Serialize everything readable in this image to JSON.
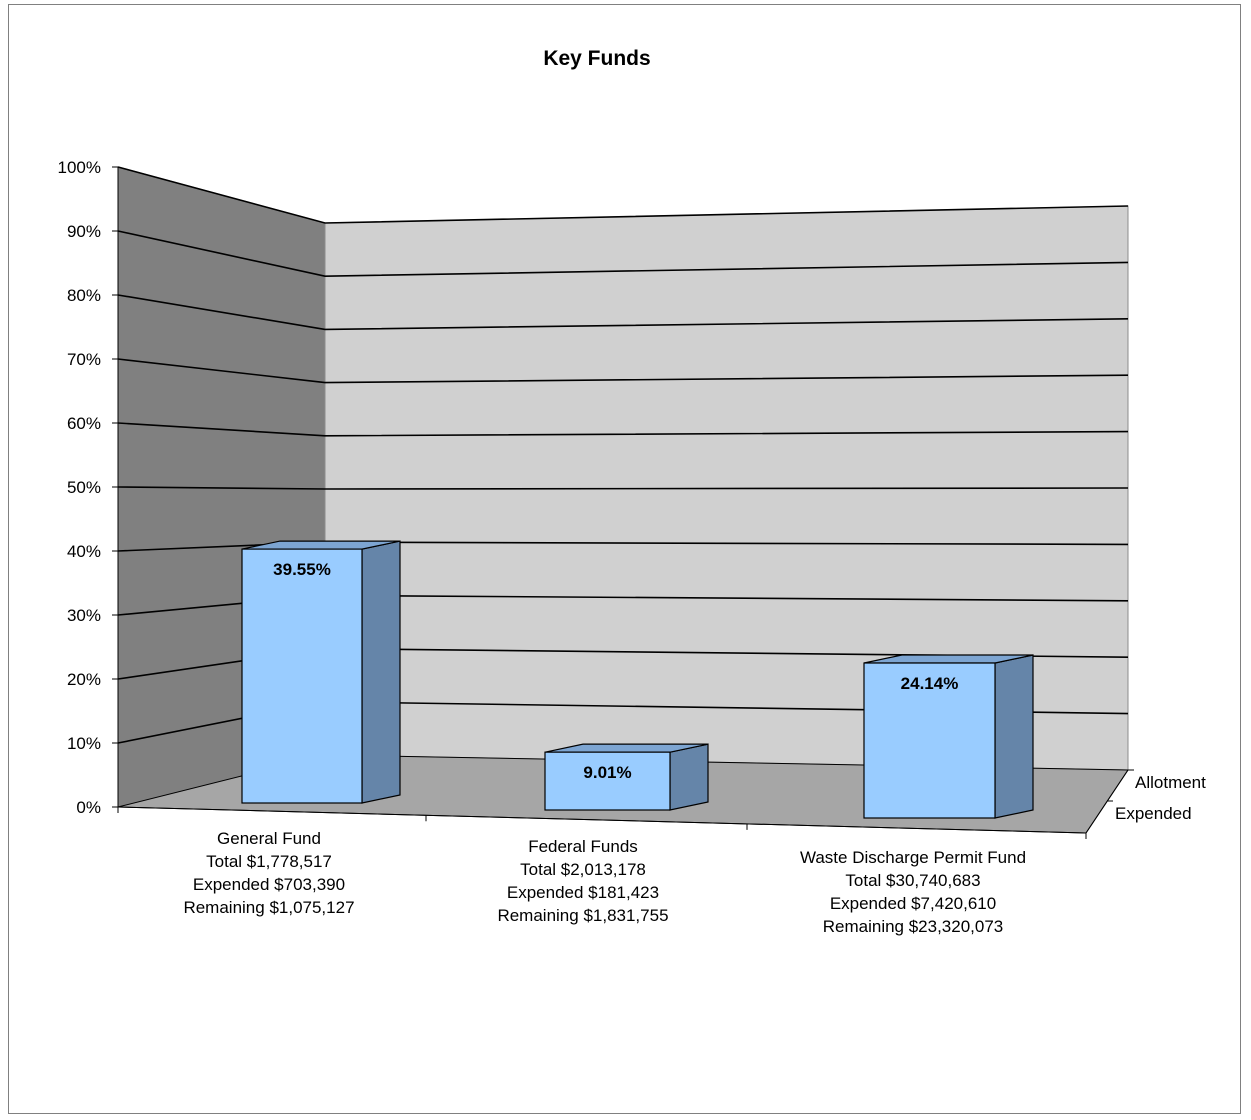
{
  "chart_data": {
    "type": "bar",
    "title": "Key Funds",
    "categories": [
      "General Fund",
      "Federal Funds",
      "Waste Discharge Permit Fund"
    ],
    "category_details": [
      [
        "General Fund",
        "Total $1,778,517",
        "Expended $703,390",
        "Remaining $1,075,127"
      ],
      [
        "Federal Funds",
        "Total $2,013,178",
        "Expended $181,423",
        "Remaining $1,831,755"
      ],
      [
        "Waste Discharge Permit Fund",
        "Total $30,740,683",
        "Expended $7,420,610",
        "Remaining $23,320,073"
      ]
    ],
    "series": [
      {
        "name": "Expended",
        "values": [
          39.55,
          9.01,
          24.14
        ],
        "labels": [
          "39.55%",
          "9.01%",
          "24.14%"
        ]
      },
      {
        "name": "Allotment",
        "values": [
          null,
          null,
          null
        ]
      }
    ],
    "ylim": [
      0,
      100
    ],
    "yticks": [
      "0%",
      "10%",
      "20%",
      "30%",
      "40%",
      "50%",
      "60%",
      "70%",
      "80%",
      "90%",
      "100%"
    ],
    "depth_labels": [
      "Allotment",
      "Expended"
    ],
    "grid": true,
    "three_d": true,
    "colors": {
      "bar_front": "#99CCFF",
      "bar_side": "#6585A9",
      "bar_top": "#7DA5D2",
      "back_wall": "#D0D0D0",
      "side_wall": "#808080",
      "floor": "#A6A6A6"
    }
  }
}
